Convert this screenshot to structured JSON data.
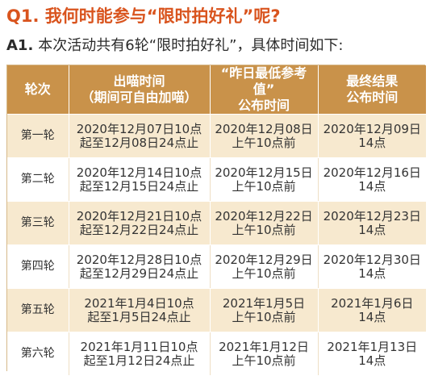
{
  "question": {
    "title": "Q1. 我何时能参与“限时拍好礼”呢?"
  },
  "answer": {
    "label": "A1.",
    "text": "本次活动共有6轮“限时拍好礼”，具体时间如下:"
  },
  "table": {
    "headers": [
      "轮次",
      "出喵时间\n（期间可自由加喵）",
      "“昨日最低参考值”\n公布时间",
      "最终结果\n公布时间"
    ],
    "rows": [
      [
        "第一轮",
        "2020年12月07日10点\n起至12月08日24点止",
        "2020年12月08日\n上午10点前",
        "2020年12月09日\n14点"
      ],
      [
        "第二轮",
        "2020年12月14日10点\n起至12月15日24点止",
        "2020年12月15日\n上午10点前",
        "2020年12月16日\n14点"
      ],
      [
        "第三轮",
        "2020年12月21日10点\n起至12月22日24点止",
        "2020年12月22日\n上午10点前",
        "2020年12月23日\n14点"
      ],
      [
        "第四轮",
        "2020年12月28日10点\n起至12月29日24点止",
        "2020年12月29日\n上午10点前",
        "2020年12月30日\n14点"
      ],
      [
        "第五轮",
        "2021年1月4日10点\n起至1月5日24点止",
        "2021年1月5日\n上午10点前",
        "2021年1月6日\n14点"
      ],
      [
        "第六轮",
        "2021年1月11日10点\n起至1月12日24点止",
        "2021年1月12日\n上午10点前",
        "2021年1月13日\n14点"
      ]
    ]
  },
  "colors": {
    "title": "#d9541e",
    "header_bg": "#c9924a",
    "stripe_bg": "#f7e9cf"
  }
}
